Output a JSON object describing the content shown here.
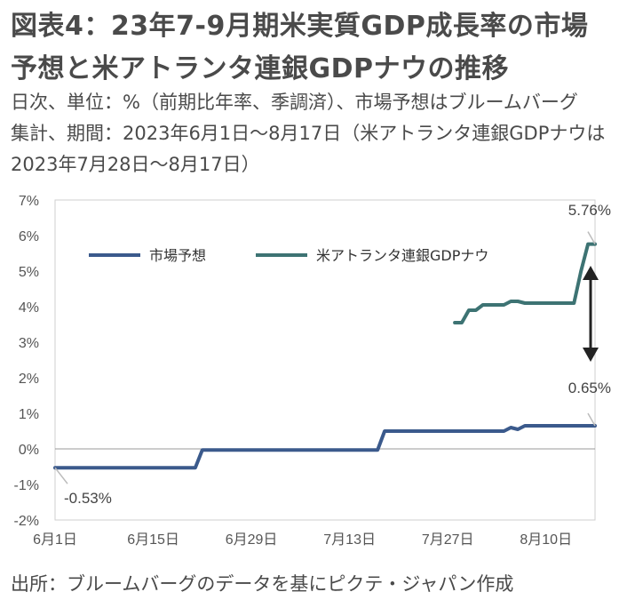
{
  "header": {
    "title_line1": "図表4：23年7-9月期米実質GDP成長率の市場",
    "title_line2": "予想と米アトランタ連銀GDPナウの推移",
    "subtitle_line1": "日次、単位：%（前期比年率、季調済）、市場予想はブルームバーグ",
    "subtitle_line2": "集計、期間：2023年6月1日～8月17日（米アトランタ連銀GDPナウは",
    "subtitle_line3": "2023年7月28日～8月17日）"
  },
  "footer": {
    "source": "出所：ブルームバーグのデータを基にピクテ・ジャパン作成"
  },
  "colors": {
    "market": "#3b5a8c",
    "gdpnow": "#3d7373",
    "arrow": "#222222",
    "leader": "#bbbbbb"
  },
  "chart_data": {
    "type": "line",
    "x_start": "2023-06-01",
    "x_end": "2023-08-17",
    "ylim": [
      -2,
      7
    ],
    "yticks": [
      "-2%",
      "-1%",
      "0%",
      "1%",
      "2%",
      "3%",
      "4%",
      "5%",
      "6%",
      "7%"
    ],
    "xticks": [
      "6月1日",
      "6月15日",
      "6月29日",
      "7月13日",
      "7月27日",
      "8月10日"
    ],
    "grid": false,
    "legend_position": "top-left",
    "annotations": [
      "5.76%",
      "0.65%",
      "-0.53%"
    ],
    "series": [
      {
        "name": "市場予想",
        "points": [
          [
            "2023-06-01",
            -0.53
          ],
          [
            "2023-06-21",
            -0.53
          ],
          [
            "2023-06-22",
            -0.03
          ],
          [
            "2023-07-17",
            -0.03
          ],
          [
            "2023-07-18",
            0.5
          ],
          [
            "2023-08-04",
            0.5
          ],
          [
            "2023-08-05",
            0.6
          ],
          [
            "2023-08-06",
            0.55
          ],
          [
            "2023-08-07",
            0.65
          ],
          [
            "2023-08-17",
            0.65
          ]
        ]
      },
      {
        "name": "米アトランタ連銀GDPナウ",
        "points": [
          [
            "2023-07-28",
            3.55
          ],
          [
            "2023-07-29",
            3.55
          ],
          [
            "2023-07-30",
            3.9
          ],
          [
            "2023-07-31",
            3.9
          ],
          [
            "2023-08-01",
            4.05
          ],
          [
            "2023-08-04",
            4.05
          ],
          [
            "2023-08-05",
            4.15
          ],
          [
            "2023-08-06",
            4.15
          ],
          [
            "2023-08-07",
            4.1
          ],
          [
            "2023-08-14",
            4.1
          ],
          [
            "2023-08-15",
            5.0
          ],
          [
            "2023-08-16",
            5.76
          ],
          [
            "2023-08-17",
            5.76
          ]
        ]
      }
    ]
  }
}
